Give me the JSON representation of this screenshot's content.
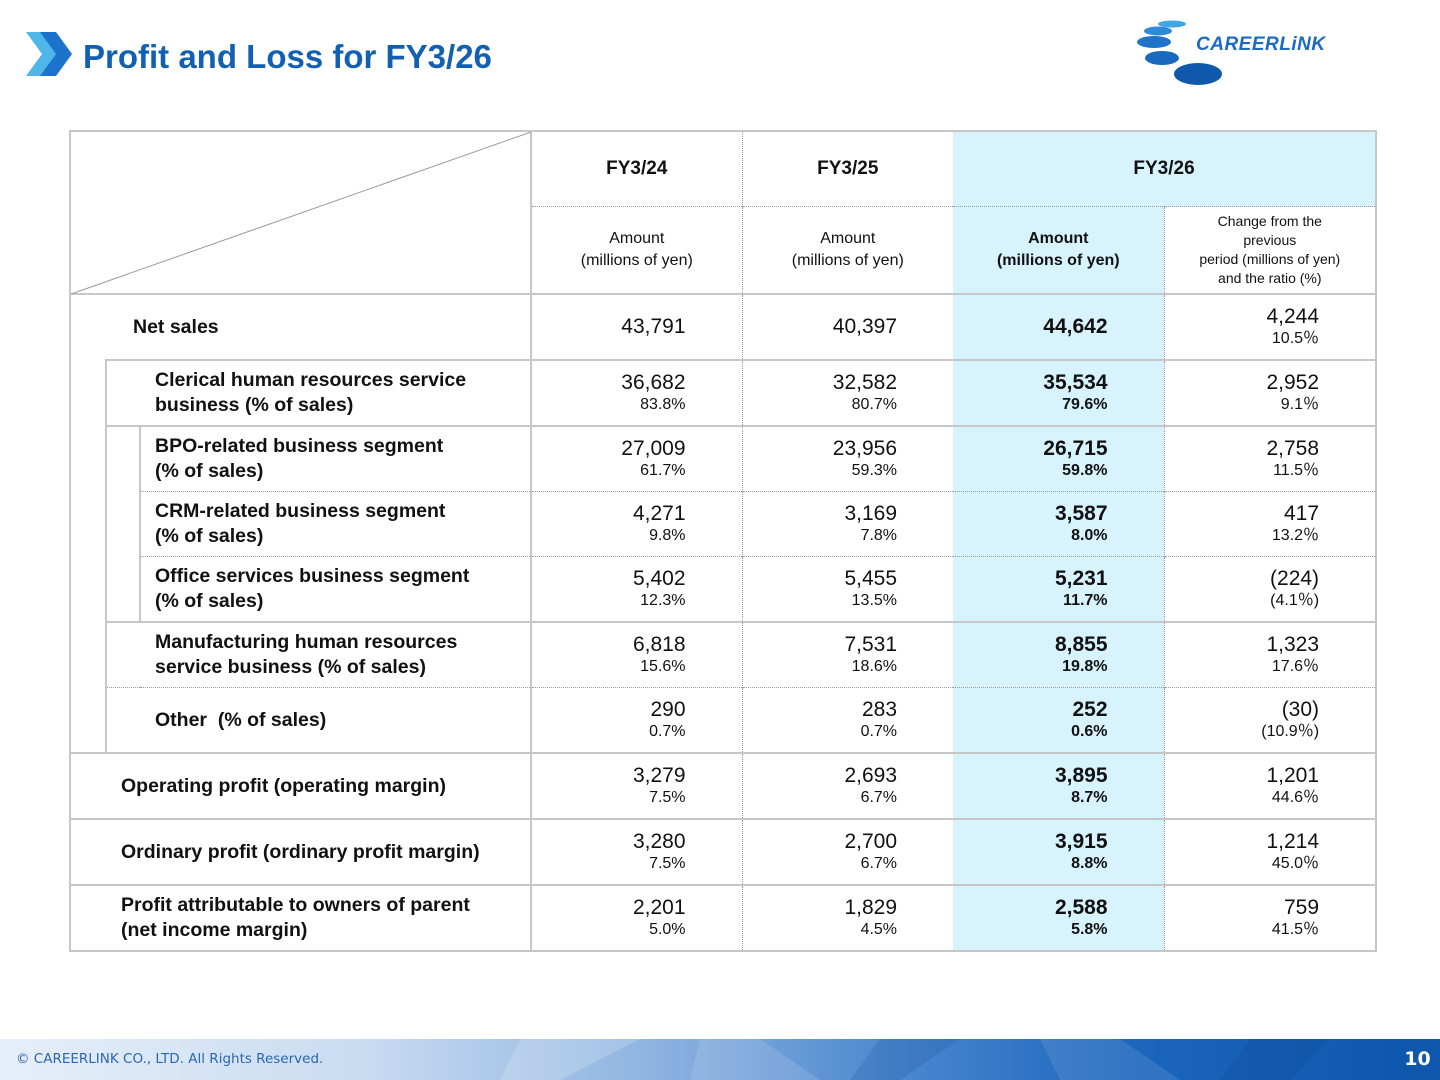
{
  "header": {
    "title": "Profit and Loss for FY3/26",
    "brand": "CAREERLINK",
    "colors": {
      "title": "#1160b4",
      "highlight": "#d7f3fd",
      "footer": "#0e57ad"
    }
  },
  "table": {
    "periods": [
      "FY3/24",
      "FY3/25",
      "FY3/26"
    ],
    "subheaders": {
      "amount_line1": "Amount",
      "amount_line2": "(millions of yen)",
      "change_line1": "Change from the",
      "change_line2": "previous",
      "change_line3": "period (millions of yen)",
      "change_line4": "and the ratio (%)"
    },
    "rows": [
      {
        "label1": "Net sales",
        "label2": "",
        "fy24": "43,791",
        "fy25": "40,397",
        "fy26": "44,642",
        "change": "4,244",
        "change_ratio": "10.5％"
      },
      {
        "label1": "Clerical human resources service",
        "label2": "business (% of sales)",
        "fy24": "36,682",
        "fy24_pct": "83.8%",
        "fy25": "32,582",
        "fy25_pct": "80.7%",
        "fy26": "35,534",
        "fy26_pct": "79.6%",
        "change": "2,952",
        "change_ratio": "9.1％"
      },
      {
        "label1": "BPO-related business segment",
        "label2": "(% of sales)",
        "fy24": "27,009",
        "fy24_pct": "61.7%",
        "fy25": "23,956",
        "fy25_pct": "59.3%",
        "fy26": "26,715",
        "fy26_pct": "59.8%",
        "change": "2,758",
        "change_ratio": "11.5％"
      },
      {
        "label1": "CRM-related business segment",
        "label2": "(% of sales)",
        "fy24": "4,271",
        "fy24_pct": "9.8%",
        "fy25": "3,169",
        "fy25_pct": "7.8%",
        "fy26": "3,587",
        "fy26_pct": "8.0%",
        "change": "417",
        "change_ratio": "13.2％"
      },
      {
        "label1": "Office services business segment",
        "label2": "(% of sales)",
        "fy24": "5,402",
        "fy24_pct": "12.3%",
        "fy25": "5,455",
        "fy25_pct": "13.5%",
        "fy26": "5,231",
        "fy26_pct": "11.7%",
        "change": "(224)",
        "change_ratio": "(4.1％)"
      },
      {
        "label1": "Manufacturing human resources",
        "label2": "service business (% of sales)",
        "fy24": "6,818",
        "fy24_pct": "15.6%",
        "fy25": "7,531",
        "fy25_pct": "18.6%",
        "fy26": "8,855",
        "fy26_pct": "19.8%",
        "change": "1,323",
        "change_ratio": "17.6％"
      },
      {
        "label1": "Other  (% of sales)",
        "label2": "",
        "fy24": "290",
        "fy24_pct": "0.7%",
        "fy25": "283",
        "fy25_pct": "0.7%",
        "fy26": "252",
        "fy26_pct": "0.6%",
        "change": "(30)",
        "change_ratio": "(10.9％)"
      },
      {
        "label1": "Operating profit (operating margin)",
        "label2": "",
        "fy24": "3,279",
        "fy24_pct": "7.5%",
        "fy25": "2,693",
        "fy25_pct": "6.7%",
        "fy26": "3,895",
        "fy26_pct": "8.7%",
        "change": "1,201",
        "change_ratio": "44.6％"
      },
      {
        "label1": "Ordinary profit (ordinary profit margin)",
        "label2": "",
        "fy24": "3,280",
        "fy24_pct": "7.5%",
        "fy25": "2,700",
        "fy25_pct": "6.7%",
        "fy26": "3,915",
        "fy26_pct": "8.8%",
        "change": "1,214",
        "change_ratio": "45.0％"
      },
      {
        "label1": "Profit attributable to owners of parent",
        "label2": "(net income margin)",
        "fy24": "2,201",
        "fy24_pct": "5.0%",
        "fy25": "1,829",
        "fy25_pct": "4.5%",
        "fy26": "2,588",
        "fy26_pct": "5.8%",
        "change": "759",
        "change_ratio": "41.5％"
      }
    ]
  },
  "footer": {
    "copyright": "© CAREERLINK CO., LTD. All Rights Reserved.",
    "page_number": "10"
  }
}
